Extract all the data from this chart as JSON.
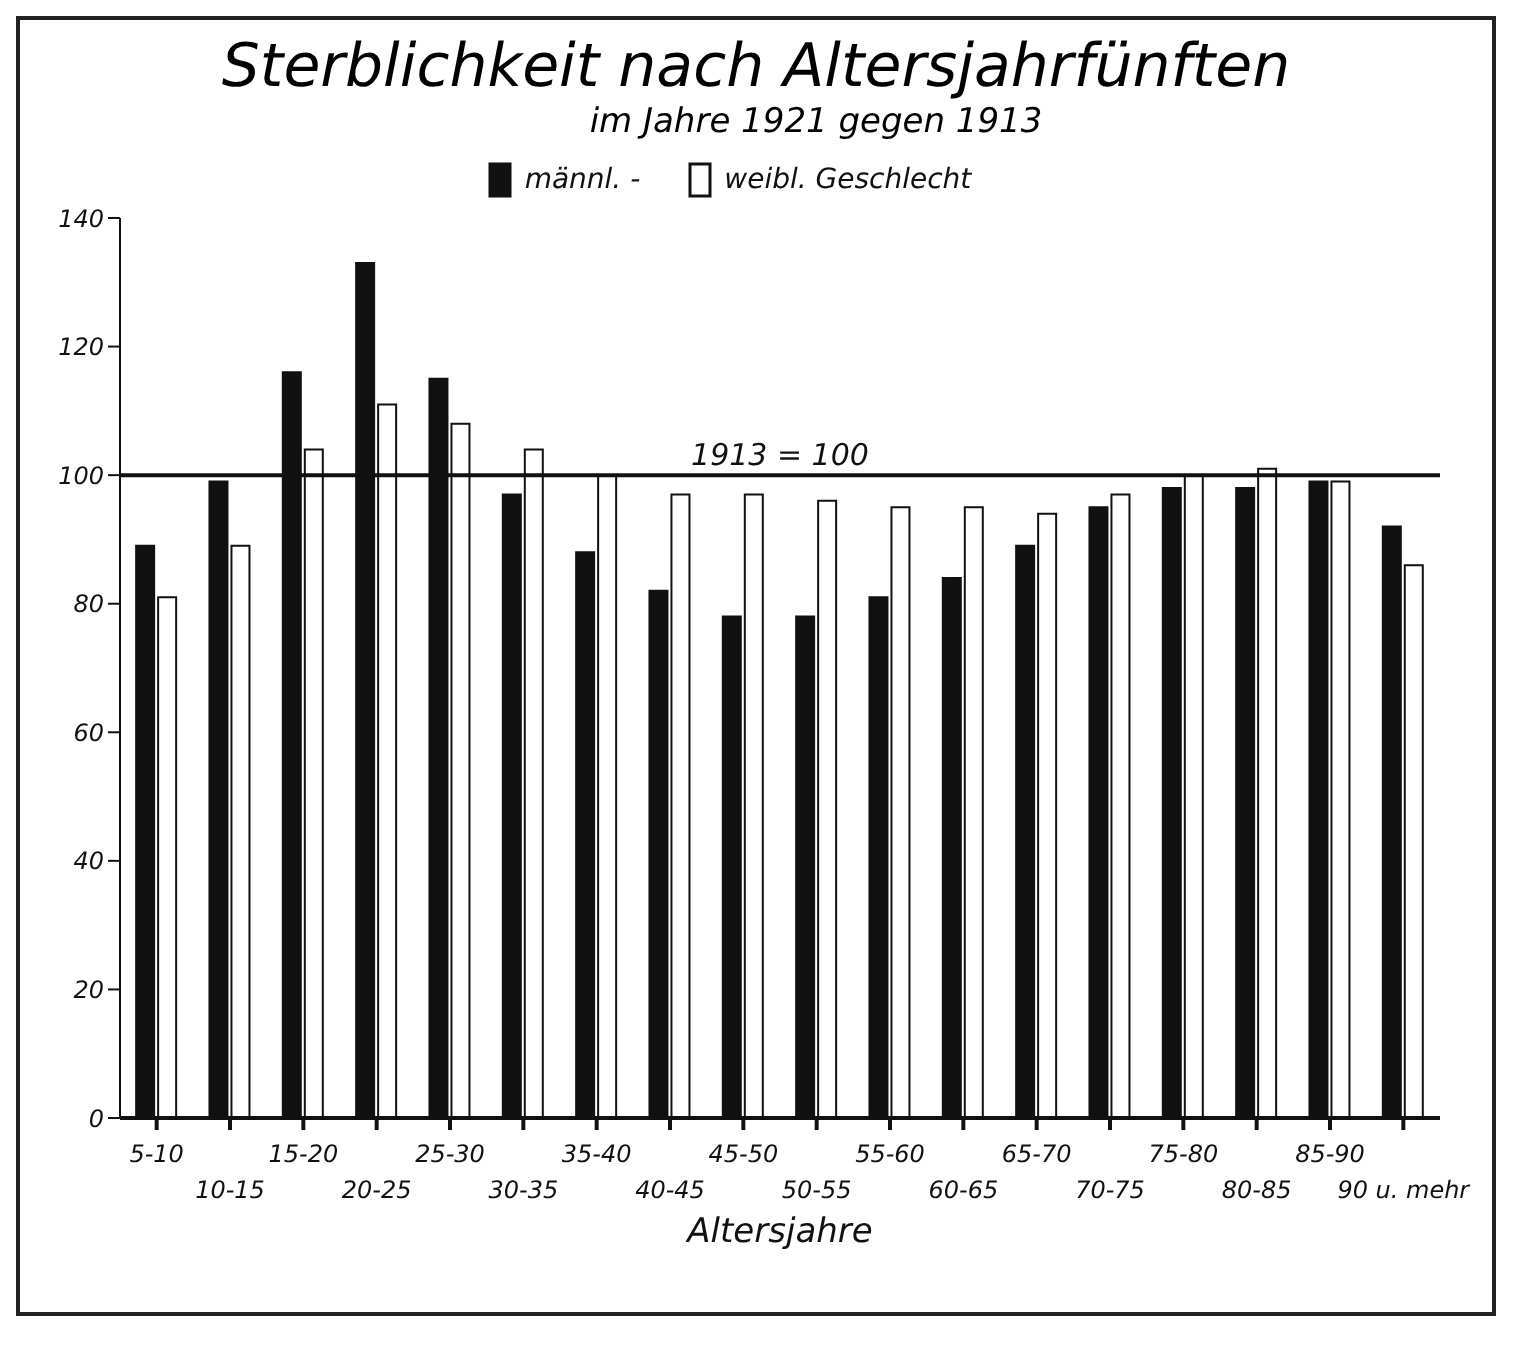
{
  "chart_data": {
    "type": "bar",
    "title": "Sterblichkeit nach Altersjahrfünften",
    "subtitle": "im Jahre 1921 gegen 1913",
    "xlabel": "Altersjahre",
    "categories": [
      "5-10",
      "10-15",
      "15-20",
      "20-25",
      "25-30",
      "30-35",
      "35-40",
      "40-45",
      "45-50",
      "50-55",
      "55-60",
      "60-65",
      "65-70",
      "70-75",
      "75-80",
      "80-85",
      "85-90",
      "90 u. mehr"
    ],
    "series": [
      {
        "name": "männl. -",
        "color": "#111111",
        "values": [
          89,
          99,
          116,
          133,
          115,
          97,
          88,
          82,
          78,
          78,
          81,
          84,
          89,
          95,
          98,
          98,
          99,
          92
        ]
      },
      {
        "name": "weibl. Geschlecht",
        "color": "#ffffff",
        "values": [
          81,
          89,
          104,
          111,
          108,
          104,
          100,
          97,
          97,
          96,
          95,
          95,
          94,
          97,
          100,
          101,
          99,
          86
        ]
      }
    ],
    "ylim": [
      0,
      140
    ],
    "yticks": [
      0,
      20,
      40,
      60,
      80,
      100,
      120,
      140
    ],
    "grid": false,
    "legend": "top",
    "ref_lines": [
      {
        "axis": "y",
        "value": 100,
        "label": "1913 = 100"
      }
    ]
  }
}
